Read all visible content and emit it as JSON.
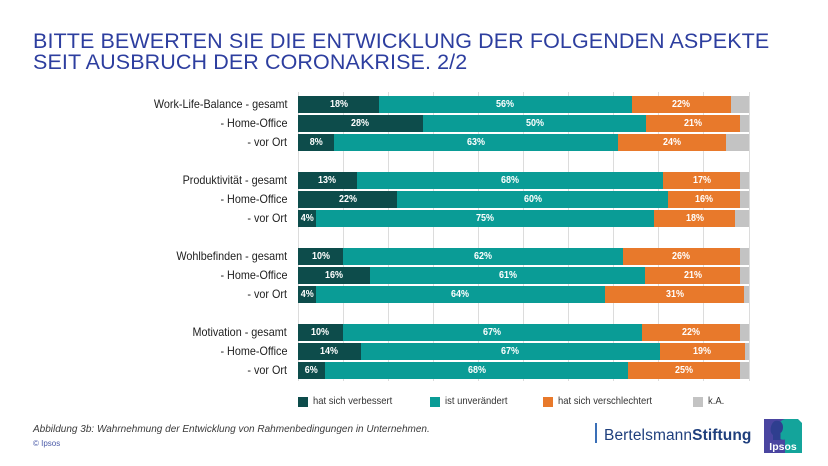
{
  "title": {
    "line1": "BITTE BEWERTEN SIE DIE ENTWICKLUNG DER FOLGENDEN ASPEKTE",
    "line2": "SEIT AUSBRUCH DER CORONAKRISE. 2/2"
  },
  "chart_data": {
    "type": "bar",
    "orientation": "horizontal",
    "stacked": true,
    "title": "BITTE BEWERTEN SIE DIE ENTWICKLUNG DER FOLGENDEN ASPEKTE SEIT AUSBRUCH DER CORONAKRISE. 2/2",
    "xlabel": "",
    "ylabel": "",
    "xlim": [
      0,
      100
    ],
    "grid": true,
    "grid_step": 10,
    "legend": "bottom",
    "value_suffix": "%",
    "groups": [
      "Work-Life-Balance",
      "Produktivität",
      "Wohlbefinden",
      "Motivation"
    ],
    "categories": [
      "Work-Life-Balance - gesamt",
      "- Home-Office",
      "- vor Ort",
      "Produktivität - gesamt",
      "- Home-Office",
      "- vor Ort",
      "Wohlbefinden - gesamt",
      "- Home-Office",
      "- vor Ort",
      "Motivation - gesamt",
      "- Home-Office",
      "- vor Ort"
    ],
    "category_groups": [
      0,
      0,
      0,
      1,
      1,
      1,
      2,
      2,
      2,
      3,
      3,
      3
    ],
    "series": [
      {
        "name": "hat sich verbessert",
        "color": "#0d4c4b",
        "show_labels": true,
        "values": [
          18,
          28,
          8,
          13,
          22,
          4,
          10,
          16,
          4,
          10,
          14,
          6
        ]
      },
      {
        "name": "ist unverändert",
        "color": "#0a9c96",
        "show_labels": true,
        "values": [
          56,
          50,
          63,
          68,
          60,
          75,
          62,
          61,
          64,
          67,
          67,
          68
        ]
      },
      {
        "name": "hat sich verschlechtert",
        "color": "#e8792b",
        "show_labels": true,
        "values": [
          22,
          21,
          24,
          17,
          16,
          18,
          26,
          21,
          31,
          22,
          19,
          25
        ]
      },
      {
        "name": "k.A.",
        "color": "#c3c3c3",
        "show_labels": false,
        "values": [
          4,
          2,
          5,
          2,
          2,
          3,
          2,
          2,
          1,
          2,
          1,
          2
        ]
      }
    ]
  },
  "caption": "Abbildung 3b: Wahrnehmung der Entwicklung von Rahmenbedingungen in Unternehmen.",
  "copyright": "© Ipsos",
  "logos": {
    "bertelsmann_regular": "Bertelsmann",
    "bertelsmann_bold": "Stiftung",
    "ipsos": "Ipsos"
  },
  "colors": {
    "title": "#2d3e9f",
    "bertelsmann": "#1f3f7d"
  }
}
